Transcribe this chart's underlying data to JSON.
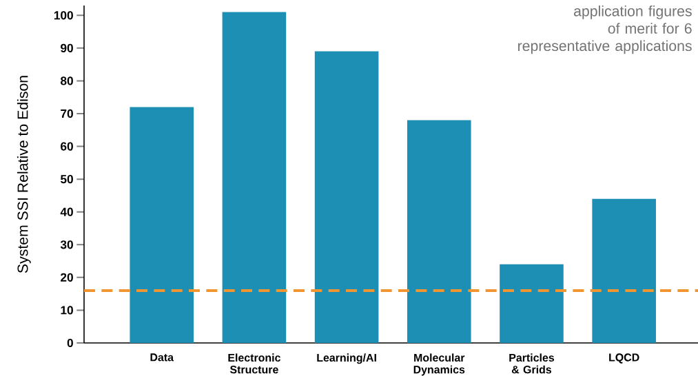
{
  "chart_data": {
    "type": "bar",
    "categories": [
      "Data",
      "Electronic Structure",
      "Learning/AI",
      "Molecular Dynamics",
      "Particles & Grids",
      "LQCD"
    ],
    "values": [
      72,
      101,
      89,
      68,
      24,
      44
    ],
    "color": "#1e8fb4",
    "ylabel": "System SSI Relative to Edison",
    "ylim": [
      0,
      103
    ],
    "yticks": [
      0,
      10,
      20,
      30,
      40,
      50,
      60,
      70,
      80,
      90,
      100
    ],
    "ref_lines": [
      {
        "axis": "y",
        "value": 16,
        "color": "#f0952f",
        "line_style": "dashed"
      }
    ],
    "annotations": [
      "application figures of merit for 6 representative applications"
    ],
    "grid": false
  }
}
